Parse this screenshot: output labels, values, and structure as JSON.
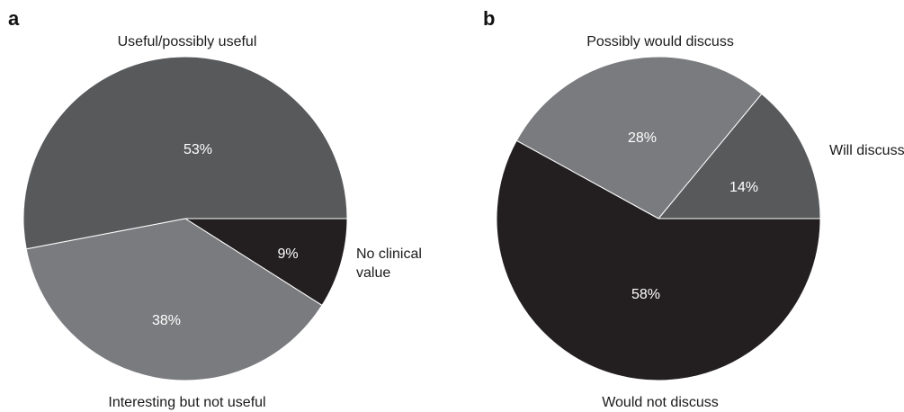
{
  "chart_data": [
    {
      "type": "pie",
      "panel_label": "a",
      "slices": [
        {
          "label": "Useful/possibly useful",
          "value": 53,
          "value_label": "53%",
          "color": "#58595b"
        },
        {
          "label": "Interesting but not useful",
          "value": 38,
          "value_label": "38%",
          "color": "#7a7b7e"
        },
        {
          "label": "No clinical value",
          "value": 9,
          "value_label": "9%",
          "color": "#231f20"
        }
      ]
    },
    {
      "type": "pie",
      "panel_label": "b",
      "slices": [
        {
          "label": "Will discuss",
          "value": 14,
          "value_label": "14%",
          "color": "#58595b"
        },
        {
          "label": "Possibly would discuss",
          "value": 28,
          "value_label": "28%",
          "color": "#7a7b7e"
        },
        {
          "label": "Would not discuss",
          "value": 58,
          "value_label": "58%",
          "color": "#231f20"
        }
      ]
    }
  ]
}
